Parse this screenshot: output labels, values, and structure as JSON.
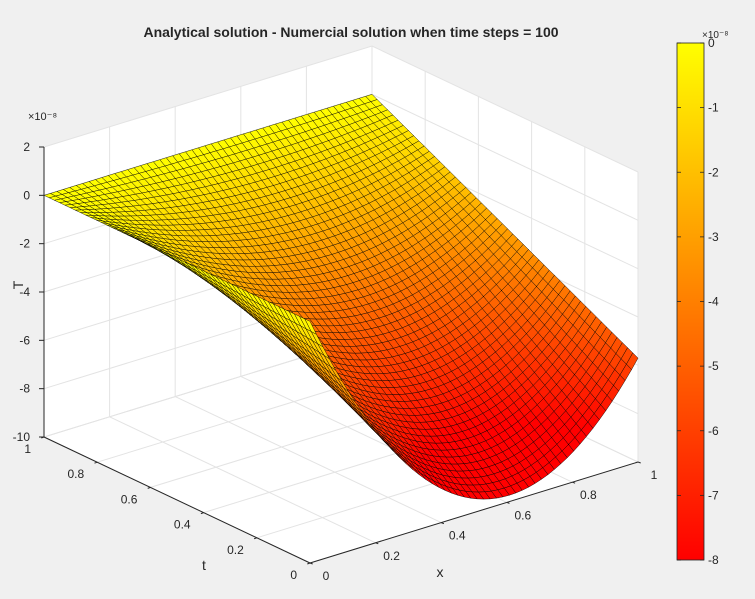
{
  "chart_data": {
    "type": "surface",
    "title": "Analytical solution - Numercial solution when time steps = 100",
    "xlabel": "x",
    "ylabel": "t",
    "zlabel": "T",
    "xlim": [
      0,
      1
    ],
    "ylim": [
      0,
      1
    ],
    "zlim": [
      -1e-07,
      2e-08
    ],
    "x_ticks": [
      0,
      0.2,
      0.4,
      0.6,
      0.8,
      1
    ],
    "x_tick_labels": [
      "0",
      "0.2",
      "0.4",
      "0.6",
      "0.8",
      "1"
    ],
    "y_ticks": [
      0,
      0.2,
      0.4,
      0.6,
      0.8,
      1
    ],
    "y_tick_labels": [
      "0",
      "0.2",
      "0.4",
      "0.6",
      "0.8",
      "1"
    ],
    "z_ticks": [
      -1e-07,
      -8e-08,
      -6e-08,
      -4e-08,
      -2e-08,
      0,
      2e-08
    ],
    "z_tick_labels": [
      "-10",
      "-8",
      "-6",
      "-4",
      "-2",
      "0",
      "2"
    ],
    "z_exponent_label": "×10⁻⁸",
    "grid": true,
    "colormap": "autumn",
    "colormap_colors": [
      "#ff0000",
      "#ffff00"
    ],
    "edge_color": "#000000",
    "mesh_resolution": 51,
    "surface_corners": {
      "x0_t0": 0,
      "x1_t0": -5.7e-08,
      "x1_t1": 0,
      "x0_t1": 0,
      "min_value": -8e-08,
      "min_location": [
        0.5,
        0
      ]
    },
    "colorbar": {
      "ticks": [
        0,
        -1e-08,
        -2e-08,
        -3e-08,
        -4e-08,
        -5e-08,
        -6e-08,
        -7e-08,
        -8e-08
      ],
      "tick_labels": [
        "0",
        "-1",
        "-2",
        "-3",
        "-4",
        "-5",
        "-6",
        "-7",
        "-8"
      ],
      "exponent_label": "×10⁻⁸",
      "range": [
        -8e-08,
        0
      ]
    }
  }
}
